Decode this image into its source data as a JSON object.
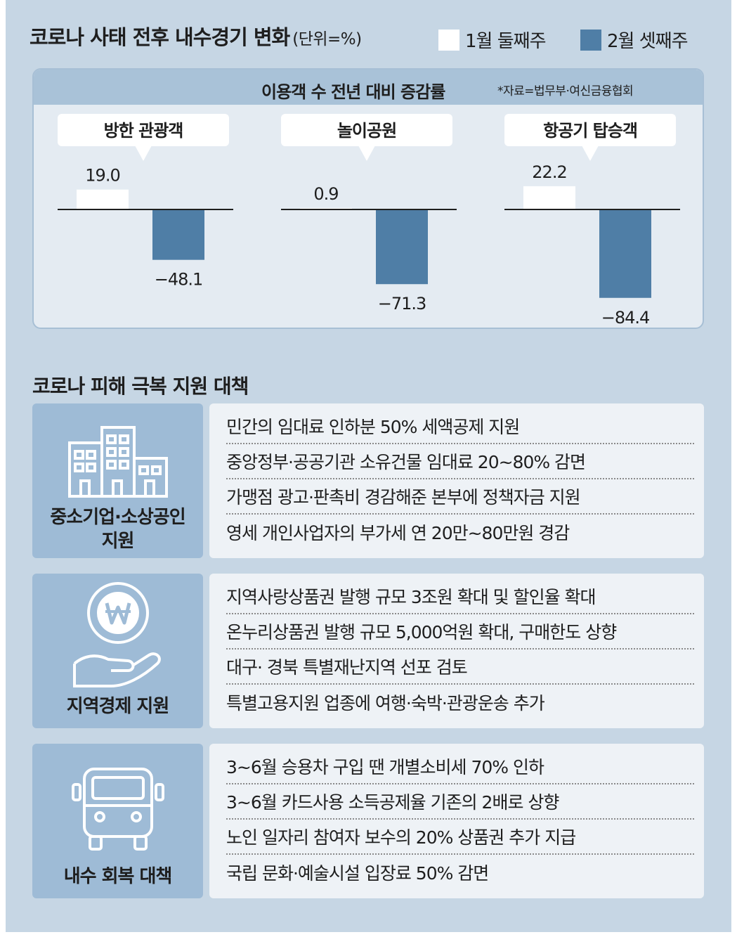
{
  "title": "코로나 사태 전후 내수경기 변화",
  "unit": "(단위=%)",
  "legend": [
    {
      "label": "1월 둘째주",
      "color": "#ffffff"
    },
    {
      "label": "2월 셋째주",
      "color": "#4f7ea6"
    }
  ],
  "chart_data": {
    "type": "bar",
    "title": "이용객 수 전년 대비 증감률",
    "source": "*자료=법무부·여신금융협회",
    "categories": [
      "방한 관광객",
      "놀이공원",
      "항공기 탑승객"
    ],
    "series": [
      {
        "name": "1월 둘째주",
        "values": [
          19.0,
          0.9,
          22.2
        ],
        "labels": [
          "19.0",
          "0.9",
          "22.2"
        ]
      },
      {
        "name": "2월 셋째주",
        "values": [
          -48.1,
          -71.3,
          -84.4
        ],
        "labels": [
          "−48.1",
          "−71.3",
          "−84.4"
        ]
      }
    ]
  },
  "policy_title": "코로나 피해 극복 지원 대책",
  "policies": [
    {
      "category": "중소기업·소상공인\n지원",
      "icon": "buildings-icon",
      "items": [
        "민간의 임대료 인하분 50% 세액공제 지원",
        "중앙정부·공공기관 소유건물 임대료 20~80% 감면",
        "가맹점 광고·판촉비 경감해준 본부에 정책자금 지원",
        "영세 개인사업자의 부가세 연 20만~80만원 경감"
      ]
    },
    {
      "category": "지역경제 지원",
      "icon": "won-coin-hand-icon",
      "items": [
        "지역사랑상품권 발행 규모 3조원 확대 및 할인율 확대",
        "온누리상품권 발행 규모 5,000억원 확대, 구매한도 상향",
        "대구· 경북 특별재난지역 선포 검토",
        "특별고용지원 업종에 여행·숙박·관광운송 추가"
      ]
    },
    {
      "category": "내수 회복 대책",
      "icon": "bus-icon",
      "items": [
        "3~6월 승용차 구입 땐 개별소비세 70% 인하",
        "3~6월 카드사용 소득공제율 기존의 2배로 상향",
        "노인 일자리 참여자 보수의 20% 상품권 추가 지급",
        "국립 문화·예술시설 입장료 50% 감면"
      ]
    }
  ]
}
